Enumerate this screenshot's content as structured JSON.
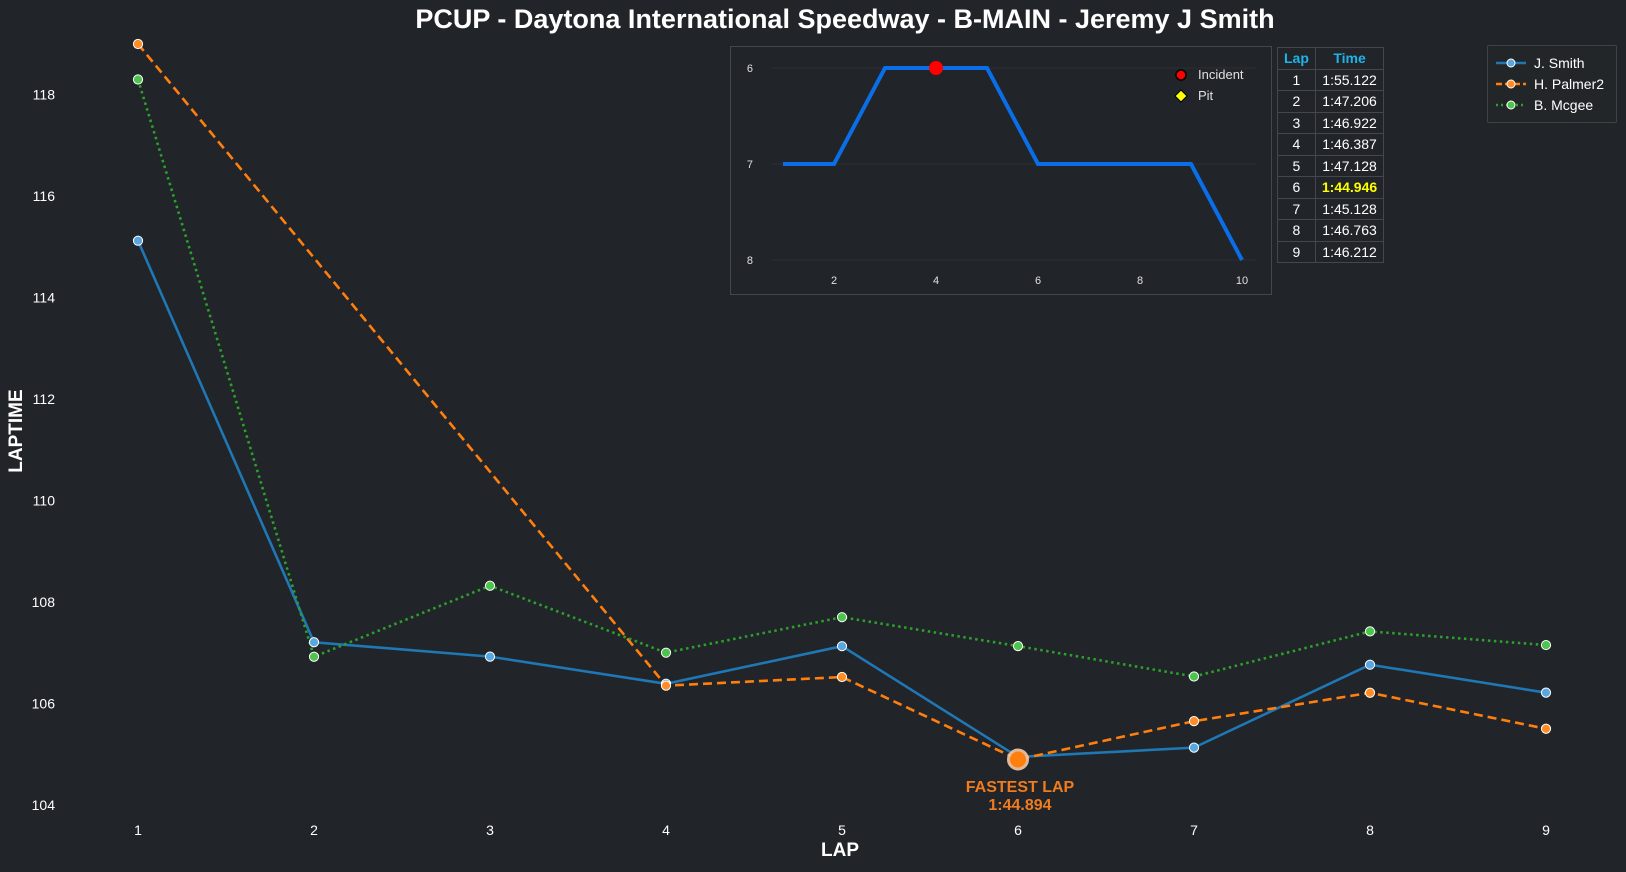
{
  "chart_data": [
    {
      "type": "line",
      "title": "PCUP - Daytona International Speedway - B-MAIN - Jeremy J Smith",
      "xlabel": "LAP",
      "ylabel": "LAPTIME",
      "x": [
        1,
        2,
        3,
        4,
        5,
        6,
        7,
        8,
        9
      ],
      "xlim": [
        0.5,
        9.5
      ],
      "ylim": [
        103.8,
        119.0
      ],
      "yticks": [
        104,
        106,
        108,
        110,
        112,
        114,
        116,
        118
      ],
      "grid": false,
      "legend_position": "top-right",
      "series": [
        {
          "name": "J. Smith",
          "color": "#1f77b4",
          "marker_color": "#5aa7e0",
          "style": "solid",
          "values": [
            115.122,
            107.206,
            106.922,
            106.387,
            107.128,
            104.946,
            105.128,
            106.763,
            106.212
          ]
        },
        {
          "name": "H. Palmer2",
          "color": "#ff7f0e",
          "marker_color": "#ff8c24",
          "style": "dashed",
          "values": [
            119.0,
            null,
            null,
            106.35,
            106.52,
            104.894,
            105.65,
            106.21,
            105.5
          ]
        },
        {
          "name": "B. Mcgee",
          "color": "#2ca02c",
          "marker_color": "#4dc44d",
          "style": "dotted",
          "values": [
            118.3,
            106.92,
            108.32,
            107.0,
            107.7,
            107.13,
            106.53,
            107.42,
            107.15
          ]
        }
      ],
      "annotation": {
        "label": "FASTEST LAP",
        "value": "1:44.894",
        "x": 6,
        "y": 104.894,
        "color": "#f07c1e"
      }
    },
    {
      "type": "line",
      "x": [
        1,
        2,
        3,
        4,
        5,
        6,
        7,
        8,
        9,
        10
      ],
      "values": [
        7,
        7,
        6,
        6,
        6,
        7,
        7,
        7,
        7,
        8
      ],
      "xticks": [
        2,
        4,
        6,
        8,
        10
      ],
      "yticks": [
        6,
        7,
        8
      ],
      "ylim": [
        8,
        6
      ],
      "xlim": [
        0.1,
        10.4
      ],
      "color": "#0a6ee8",
      "markers": [
        {
          "type": "Incident",
          "x": 4,
          "y": 6,
          "color": "#ff0000"
        }
      ],
      "legend": [
        {
          "label": "Incident",
          "color": "#ff0000",
          "shape": "circle"
        },
        {
          "label": "Pit",
          "color": "#ffff00",
          "shape": "diamond"
        }
      ]
    }
  ],
  "table": {
    "headers": [
      "Lap",
      "Time"
    ],
    "highlight_color": "#ffff00",
    "rows": [
      {
        "lap": "1",
        "time": "1:55.122",
        "best": false
      },
      {
        "lap": "2",
        "time": "1:47.206",
        "best": false
      },
      {
        "lap": "3",
        "time": "1:46.922",
        "best": false
      },
      {
        "lap": "4",
        "time": "1:46.387",
        "best": false
      },
      {
        "lap": "5",
        "time": "1:47.128",
        "best": false
      },
      {
        "lap": "6",
        "time": "1:44.946",
        "best": true
      },
      {
        "lap": "7",
        "time": "1:45.128",
        "best": false
      },
      {
        "lap": "8",
        "time": "1:46.763",
        "best": false
      },
      {
        "lap": "9",
        "time": "1:46.212",
        "best": false
      }
    ]
  }
}
